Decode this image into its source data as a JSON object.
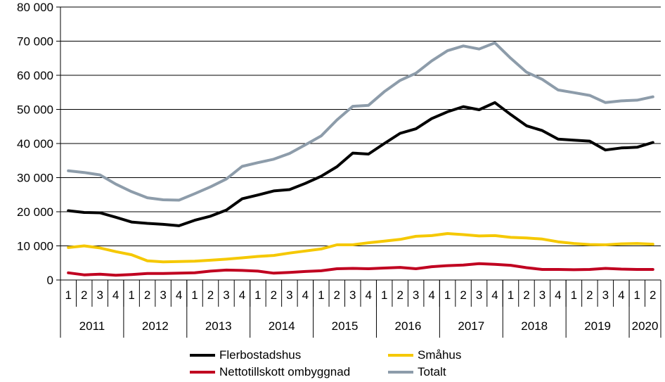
{
  "chart_data": {
    "type": "line",
    "title": "",
    "xlabel": "",
    "ylabel": "",
    "ylim": [
      0,
      80000
    ],
    "y_ticks": [
      "0",
      "10 000",
      "20 000",
      "30 000",
      "40 000",
      "50 000",
      "60 000",
      "70 000",
      "80 000"
    ],
    "grid": "horizontal",
    "legend_position": "bottom",
    "x_quarter_labels": [
      "1",
      "2",
      "3",
      "4",
      "1",
      "2",
      "3",
      "4",
      "1",
      "2",
      "3",
      "4",
      "1",
      "2",
      "3",
      "4",
      "1",
      "2",
      "3",
      "4",
      "1",
      "2",
      "3",
      "4",
      "1",
      "2",
      "3",
      "4",
      "1",
      "2",
      "3",
      "4",
      "1",
      "2",
      "3",
      "4",
      "1",
      "2"
    ],
    "x_year_labels": [
      {
        "label": "2011",
        "quarters": 4
      },
      {
        "label": "2012",
        "quarters": 4
      },
      {
        "label": "2013",
        "quarters": 4
      },
      {
        "label": "2014",
        "quarters": 4
      },
      {
        "label": "2015",
        "quarters": 4
      },
      {
        "label": "2016",
        "quarters": 4
      },
      {
        "label": "2017",
        "quarters": 4
      },
      {
        "label": "2018",
        "quarters": 4
      },
      {
        "label": "2019",
        "quarters": 4
      },
      {
        "label": "2020",
        "quarters": 2
      }
    ],
    "series": [
      {
        "name": "Flerbostadshus",
        "color": "#000000",
        "values": [
          20300,
          19800,
          19700,
          18400,
          17000,
          16600,
          16300,
          15900,
          17500,
          18700,
          20500,
          23800,
          24900,
          26100,
          26500,
          28300,
          30400,
          33200,
          37200,
          36900,
          40000,
          43000,
          44300,
          47300,
          49300,
          50800,
          49900,
          52000,
          48500,
          45200,
          43800,
          41300,
          41000,
          40700,
          38100,
          38700,
          38900,
          40300
        ]
      },
      {
        "name": "Småhus",
        "color": "#f5c800",
        "values": [
          9500,
          10000,
          9400,
          8300,
          7400,
          5600,
          5300,
          5400,
          5500,
          5800,
          6100,
          6500,
          6900,
          7200,
          7900,
          8500,
          9100,
          10300,
          10300,
          10900,
          11400,
          11900,
          12800,
          13000,
          13600,
          13300,
          12900,
          13000,
          12500,
          12300,
          12000,
          11200,
          10700,
          10400,
          10300,
          10600,
          10700,
          10500
        ]
      },
      {
        "name": "Nettotillskott ombyggnad",
        "color": "#c00020",
        "values": [
          2100,
          1500,
          1700,
          1400,
          1600,
          1900,
          1900,
          2000,
          2100,
          2600,
          2900,
          2800,
          2600,
          2000,
          2200,
          2500,
          2700,
          3300,
          3400,
          3300,
          3500,
          3700,
          3300,
          3900,
          4200,
          4400,
          4800,
          4600,
          4300,
          3600,
          3100,
          3100,
          3000,
          3100,
          3400,
          3200,
          3100,
          3100
        ]
      },
      {
        "name": "Totalt",
        "color": "#8d9caa",
        "values": [
          32000,
          31500,
          30800,
          28100,
          25900,
          24100,
          23500,
          23400,
          25300,
          27300,
          29600,
          33300,
          34400,
          35400,
          37100,
          39600,
          42200,
          46900,
          50900,
          51200,
          55200,
          58500,
          60600,
          64200,
          67200,
          68600,
          67700,
          69500,
          65000,
          60900,
          58800,
          55700,
          54900,
          54100,
          52000,
          52500,
          52700,
          53700
        ]
      }
    ]
  }
}
